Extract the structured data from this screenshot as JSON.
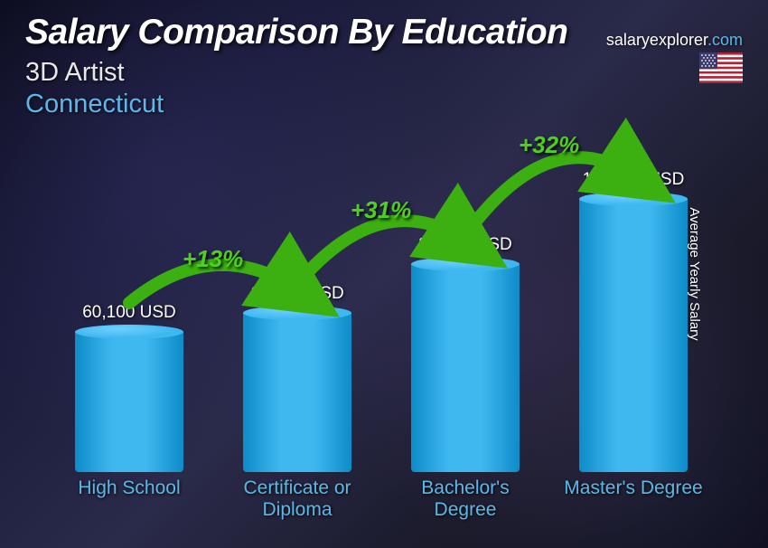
{
  "header": {
    "title": "Salary Comparison By Education",
    "subtitle": "3D Artist",
    "location": "Connecticut",
    "site_prefix": "salaryexplorer",
    "site_suffix": ".com"
  },
  "ylabel": "Average Yearly Salary",
  "chart": {
    "type": "bar",
    "max_value": 117000,
    "bar_color_top": "#3fb8f0",
    "bar_color_bottom": "#0d8cc9",
    "bar_top_highlight": "#6fd0ff",
    "xlabel_color": "#5bb8e8",
    "value_color": "#ffffff",
    "pct_color": "#4fd020",
    "arc_color": "#3cb010",
    "bars": [
      {
        "label": "High School",
        "value": 60100,
        "display": "60,100 USD"
      },
      {
        "label": "Certificate or Diploma",
        "value": 68200,
        "display": "68,200 USD"
      },
      {
        "label": "Bachelor's Degree",
        "value": 89200,
        "display": "89,200 USD"
      },
      {
        "label": "Master's Degree",
        "value": 117000,
        "display": "117,000 USD"
      }
    ],
    "increases": [
      {
        "pct": "+13%"
      },
      {
        "pct": "+31%"
      },
      {
        "pct": "+32%"
      }
    ]
  },
  "flag": {
    "stripe_red": "#b22234",
    "stripe_white": "#ffffff",
    "canton": "#3c3b6e"
  }
}
